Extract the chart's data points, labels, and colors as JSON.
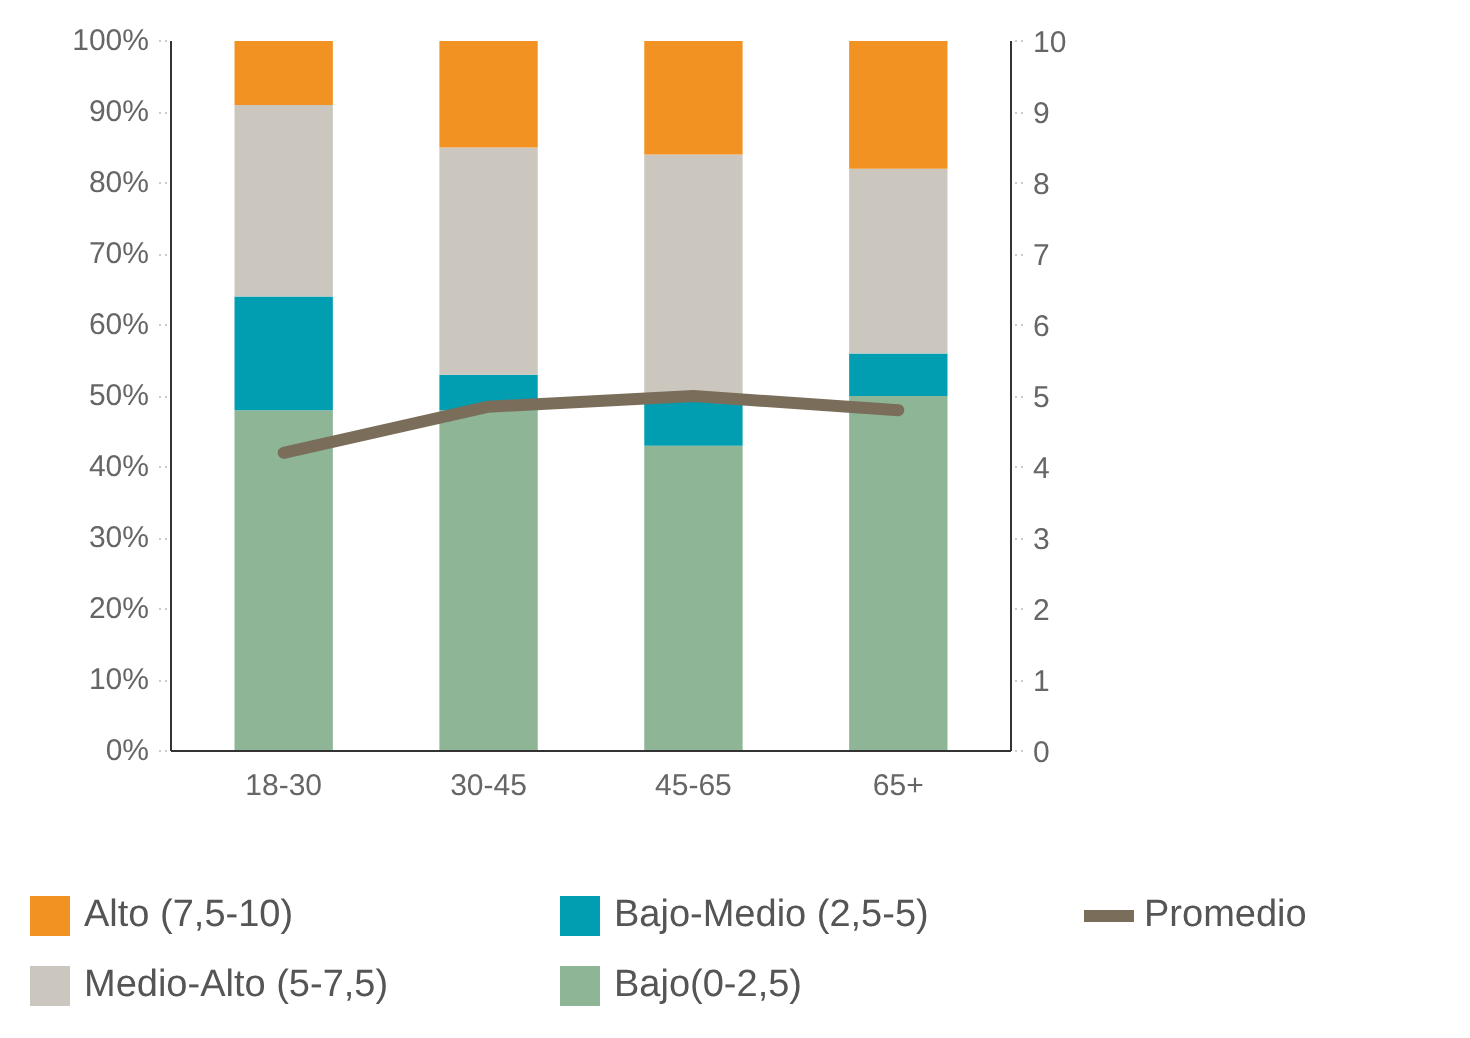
{
  "chart_data": {
    "type": "bar",
    "stacked": true,
    "categories": [
      "18-30",
      "30-45",
      "45-65",
      "65+"
    ],
    "series": [
      {
        "name": "Bajo(0-2,5)",
        "color": "#8db596",
        "values": [
          48,
          48,
          43,
          50
        ]
      },
      {
        "name": "Bajo-Medio (2,5-5)",
        "color": "#009eb0",
        "values": [
          16,
          5,
          7,
          6
        ]
      },
      {
        "name": "Medio-Alto (5-7,5)",
        "color": "#cbc7bf",
        "values": [
          27,
          32,
          34,
          26
        ]
      },
      {
        "name": "Alto (7,5-10)",
        "color": "#f29222",
        "values": [
          9,
          15,
          16,
          18
        ]
      },
      {
        "name": "Promedio",
        "type": "line",
        "axis": "y2",
        "color": "#7a6e5a",
        "values": [
          4.2,
          4.85,
          5.0,
          4.8
        ]
      }
    ],
    "ylim": [
      0,
      100
    ],
    "yticks": [
      {
        "value": 0,
        "label": "0%"
      },
      {
        "value": 10,
        "label": "10%"
      },
      {
        "value": 20,
        "label": "20%"
      },
      {
        "value": 30,
        "label": "30%"
      },
      {
        "value": 40,
        "label": "40%"
      },
      {
        "value": 50,
        "label": "50%"
      },
      {
        "value": 60,
        "label": "60%"
      },
      {
        "value": 70,
        "label": "70%"
      },
      {
        "value": 80,
        "label": "80%"
      },
      {
        "value": 90,
        "label": "90%"
      },
      {
        "value": 100,
        "label": "100%"
      }
    ],
    "y2lim": [
      0,
      10
    ],
    "y2ticks": [
      0,
      1,
      2,
      3,
      4,
      5,
      6,
      7,
      8,
      9,
      10
    ],
    "grid": false,
    "legend": "bottom"
  }
}
